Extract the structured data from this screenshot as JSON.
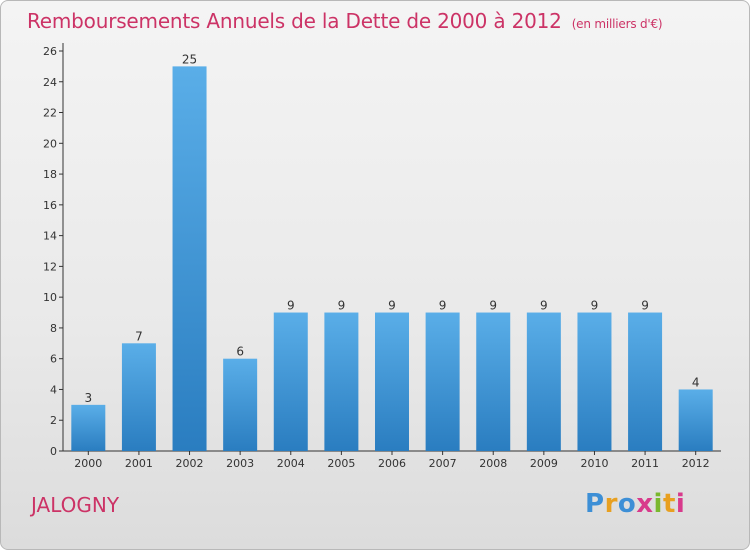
{
  "header": {
    "title": "Remboursements Annuels de la Dette de 2000 à 2012",
    "unit": "(en milliers d'€)"
  },
  "footer": {
    "commune": "JALOGNY",
    "brand": "Proxiti"
  },
  "colors": {
    "title": "#cc3366",
    "bar_top": "#5aaee8",
    "bar_bottom": "#2a7dc0",
    "axis": "#333333"
  },
  "chart_data": {
    "type": "bar",
    "title": "Remboursements Annuels de la Dette de 2000 à 2012",
    "subtitle": "(en milliers d'€)",
    "categories": [
      "2000",
      "2001",
      "2002",
      "2003",
      "2004",
      "2005",
      "2006",
      "2007",
      "2008",
      "2009",
      "2010",
      "2011",
      "2012"
    ],
    "values": [
      3,
      7,
      25,
      6,
      9,
      9,
      9,
      9,
      9,
      9,
      9,
      9,
      4
    ],
    "ylim": [
      0,
      26
    ],
    "yticks": [
      0,
      2,
      4,
      6,
      8,
      10,
      12,
      14,
      16,
      18,
      20,
      22,
      24,
      26
    ],
    "grid": false,
    "xlabel": "",
    "ylabel": ""
  }
}
